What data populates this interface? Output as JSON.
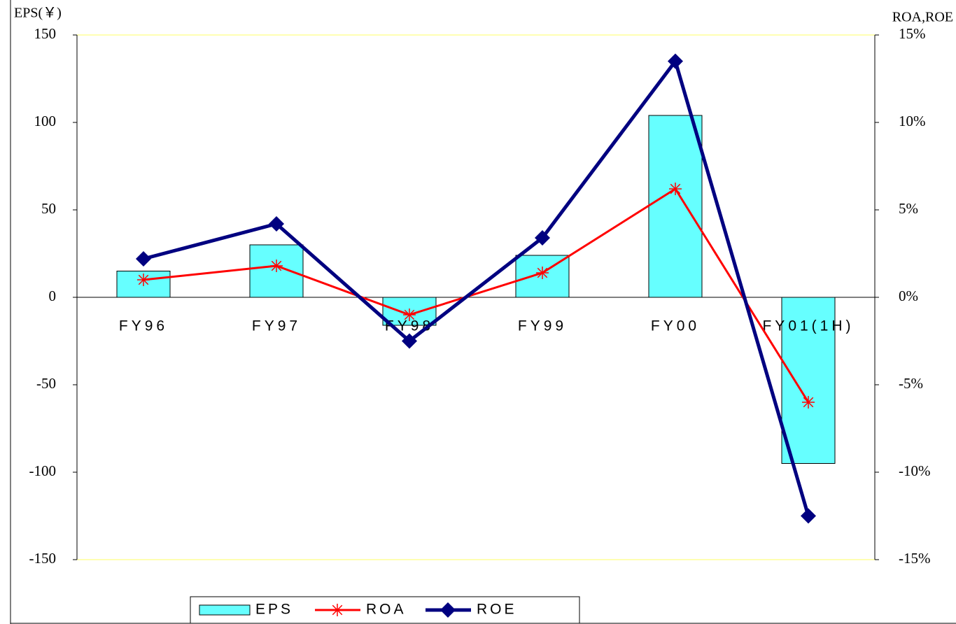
{
  "chart_data": {
    "type": "bar",
    "y_label": "EPS(￥)",
    "y2_label": "ROA,ROE",
    "categories": [
      "FY96",
      "FY97",
      "FY98",
      "FY99",
      "FY00",
      "FY01(1H)"
    ],
    "series": [
      {
        "name": "EPS",
        "type": "bar",
        "color": "#66ffff",
        "values": [
          15,
          30,
          -16,
          24,
          104,
          -95
        ]
      },
      {
        "name": "ROA",
        "type": "line",
        "axis": "y2",
        "marker": "asterisk",
        "color": "#ff0000",
        "values": [
          1.0,
          1.8,
          -1.0,
          1.4,
          6.2,
          -6.0
        ]
      },
      {
        "name": "ROE",
        "type": "line",
        "axis": "y2",
        "marker": "diamond",
        "color": "#000080",
        "values": [
          2.2,
          4.2,
          -2.5,
          3.4,
          13.5,
          -12.5
        ]
      }
    ],
    "ylim": [
      -150,
      150
    ],
    "yticks": [
      -150,
      -100,
      -50,
      0,
      50,
      100,
      150
    ],
    "y2lim": [
      -15,
      15
    ],
    "y2ticks": [
      {
        "value": -15,
        "label": "-15%"
      },
      {
        "value": -10,
        "label": "-10%"
      },
      {
        "value": -5,
        "label": "-5%"
      },
      {
        "value": 0,
        "label": "0%"
      },
      {
        "value": 5,
        "label": "5%"
      },
      {
        "value": 10,
        "label": "10%"
      },
      {
        "value": 15,
        "label": "15%"
      }
    ],
    "negative_tick_color": "#ff0000",
    "legend": "bottom"
  }
}
